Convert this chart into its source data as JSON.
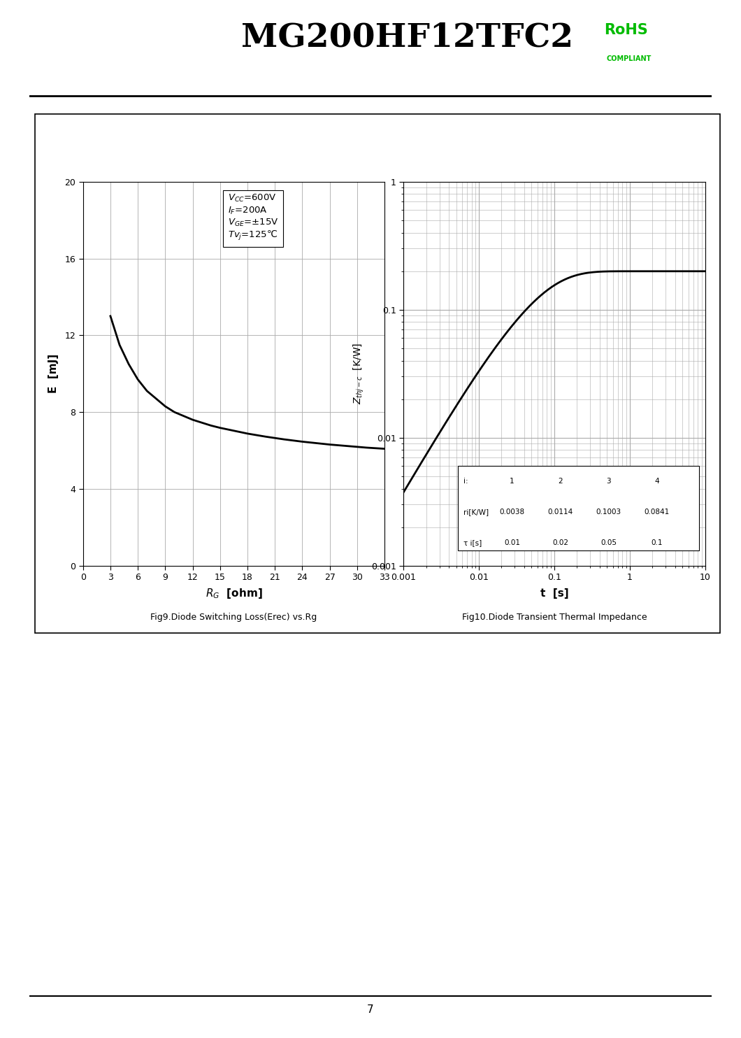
{
  "title": "MG200HF12TFC2",
  "page_number": "7",
  "fig1": {
    "title": "Fig9.Diode Switching Loss(Erec) vs.Rg",
    "xlabel": "R_G  [ohm]",
    "ylabel": "E  [mJ]",
    "xlim": [
      0,
      33
    ],
    "ylim": [
      0,
      20
    ],
    "xticks": [
      0,
      3,
      6,
      9,
      12,
      15,
      18,
      21,
      24,
      27,
      30,
      33
    ],
    "yticks": [
      0,
      4,
      8,
      12,
      16,
      20
    ],
    "curve_x": [
      3,
      4,
      5,
      6,
      7,
      8,
      9,
      10,
      11,
      12,
      13,
      14,
      15,
      16,
      17,
      18,
      19,
      20,
      21,
      22,
      23,
      24,
      25,
      26,
      27,
      28,
      29,
      30,
      31,
      32,
      33
    ],
    "curve_y": [
      13.0,
      11.5,
      10.5,
      9.7,
      9.1,
      8.7,
      8.3,
      8.0,
      7.8,
      7.6,
      7.45,
      7.3,
      7.18,
      7.08,
      6.98,
      6.88,
      6.8,
      6.72,
      6.65,
      6.58,
      6.52,
      6.46,
      6.41,
      6.36,
      6.31,
      6.27,
      6.23,
      6.19,
      6.15,
      6.12,
      6.09
    ]
  },
  "fig2": {
    "title": "Fig10.Diode Transient Thermal Impedance",
    "xlabel": "t  [s]",
    "ylabel": "Z_thjc  [K/W]",
    "r_vals": [
      0.0038,
      0.0114,
      0.1003,
      0.0841
    ],
    "tau_vals": [
      0.01,
      0.02,
      0.05,
      0.1
    ],
    "table_i": [
      "1",
      "2",
      "3",
      "4"
    ],
    "table_r": [
      "0.0038",
      "0.0114",
      "0.1003",
      "0.0841"
    ],
    "table_tau": [
      "0.01",
      "0.02",
      "0.05",
      "0.1"
    ]
  },
  "background_color": "#ffffff",
  "grid_color": "#aaaaaa",
  "line_color": "#000000"
}
